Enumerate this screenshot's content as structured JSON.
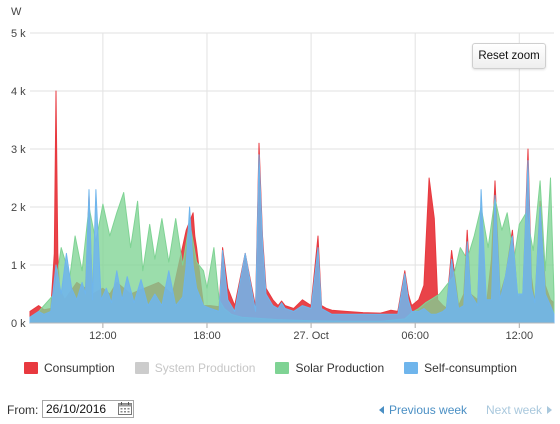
{
  "chart_data": {
    "type": "area",
    "ylabel": "W",
    "ylim": [
      0,
      5000
    ],
    "y_ticks": [
      "0 k",
      "1 k",
      "2 k",
      "3 k",
      "4 k",
      "5 k"
    ],
    "y_tick_values": [
      0,
      1000,
      2000,
      3000,
      4000,
      5000
    ],
    "x_range_hours": [
      7.8,
      38.0
    ],
    "x_ticks": [
      "12:00",
      "18:00",
      "27. Oct",
      "06:00",
      "12:00"
    ],
    "x_tick_values": [
      12,
      18,
      24,
      30,
      36
    ],
    "grid": true,
    "legend_position": "bottom",
    "series": [
      {
        "name": "Consumption",
        "color": "#e8393f",
        "visible": true,
        "x": [
          7.8,
          8.3,
          8.6,
          9.0,
          9.2,
          9.3,
          9.4,
          9.5,
          9.8,
          10.5,
          11.0,
          11.2,
          11.4,
          12.0,
          12.4,
          12.8,
          13.6,
          14.4,
          15.2,
          16.0,
          16.8,
          17.2,
          17.3,
          17.4,
          17.6,
          17.8,
          18.2,
          18.7,
          18.9,
          19.2,
          19.6,
          20.2,
          20.8,
          21.0,
          21.2,
          21.4,
          21.8,
          22.1,
          22.3,
          22.5,
          23.0,
          23.5,
          24.0,
          24.4,
          24.6,
          24.9,
          25.2,
          26.0,
          27.0,
          28.0,
          28.6,
          29.0,
          29.4,
          29.6,
          29.8,
          30.2,
          30.5,
          30.8,
          31.1,
          31.3,
          31.6,
          31.8,
          32.1,
          32.5,
          32.8,
          33.0,
          33.2,
          33.6,
          33.8,
          34.1,
          34.4,
          34.6,
          34.9,
          35.2,
          35.6,
          35.9,
          36.2,
          36.5,
          36.7,
          36.9,
          37.2,
          37.5,
          37.8,
          38.0
        ],
        "values": [
          200,
          300,
          230,
          250,
          1200,
          4000,
          1200,
          600,
          400,
          700,
          600,
          2200,
          500,
          600,
          500,
          700,
          500,
          600,
          700,
          500,
          1600,
          1900,
          1500,
          1300,
          800,
          300,
          300,
          280,
          1300,
          600,
          300,
          1200,
          280,
          3100,
          1500,
          600,
          400,
          300,
          380,
          300,
          250,
          400,
          300,
          1500,
          300,
          250,
          220,
          200,
          180,
          170,
          220,
          200,
          900,
          500,
          300,
          400,
          650,
          2500,
          1800,
          400,
          300,
          260,
          1250,
          300,
          500,
          1600,
          500,
          400,
          1900,
          300,
          1100,
          2450,
          500,
          800,
          1600,
          450,
          500,
          3000,
          800,
          350,
          2100,
          650,
          400,
          350
        ]
      },
      {
        "name": "System Production",
        "color": "#cccccc",
        "visible": false,
        "values": []
      },
      {
        "name": "Solar Production",
        "color": "#7fd394",
        "visible": true,
        "x": [
          7.8,
          8.3,
          8.6,
          9.2,
          9.6,
          10.1,
          10.4,
          10.8,
          11.2,
          11.6,
          12.0,
          12.4,
          12.8,
          13.2,
          13.6,
          14.0,
          14.3,
          14.7,
          15.0,
          15.4,
          15.8,
          16.2,
          16.6,
          17.0,
          17.4,
          17.8,
          18.0,
          18.4,
          18.7,
          19.0,
          19.4,
          20.0,
          21.0,
          22.0,
          23.0,
          24.0,
          26.0,
          28.0,
          29.4,
          29.8,
          30.2,
          30.6,
          31.0,
          31.4,
          31.8,
          32.2,
          32.6,
          33.0,
          33.4,
          33.8,
          34.2,
          34.6,
          35.0,
          35.3,
          35.7,
          36.0,
          36.4,
          36.8,
          37.2,
          37.5,
          37.8,
          38.0
        ],
        "values": [
          100,
          200,
          300,
          500,
          1300,
          800,
          1500,
          900,
          2000,
          1400,
          2050,
          1500,
          1900,
          2250,
          1300,
          2100,
          900,
          1700,
          1100,
          1800,
          1050,
          1800,
          1000,
          1750,
          1050,
          900,
          600,
          1300,
          400,
          250,
          150,
          100,
          80,
          60,
          50,
          40,
          30,
          30,
          70,
          180,
          250,
          350,
          420,
          500,
          650,
          800,
          1300,
          1100,
          1500,
          2000,
          1300,
          2150,
          1600,
          1900,
          1100,
          1700,
          1900,
          1250,
          2450,
          900,
          2500,
          500
        ]
      },
      {
        "name": "Self-consumption",
        "color": "#6fb5ec",
        "visible": true,
        "x": [
          7.8,
          8.3,
          8.6,
          9.0,
          9.3,
          9.6,
          9.9,
          10.2,
          10.5,
          10.8,
          11.0,
          11.2,
          11.4,
          11.6,
          11.9,
          12.2,
          12.5,
          12.8,
          13.1,
          13.4,
          13.8,
          14.2,
          14.6,
          15.0,
          15.4,
          15.8,
          16.2,
          16.6,
          16.8,
          17.0,
          17.2,
          17.4,
          17.8,
          18.2,
          18.7,
          18.9,
          19.2,
          19.6,
          20.2,
          20.8,
          21.0,
          21.2,
          21.4,
          21.8,
          22.1,
          22.3,
          22.5,
          23.0,
          23.5,
          24.0,
          24.4,
          24.6,
          24.9,
          25.2,
          26.0,
          27.0,
          28.0,
          28.6,
          29.0,
          29.4,
          29.6,
          29.8,
          30.2,
          30.5,
          30.7,
          30.9,
          31.2,
          31.6,
          31.8,
          32.1,
          32.5,
          32.8,
          33.0,
          33.2,
          33.6,
          33.8,
          34.1,
          34.4,
          34.6,
          34.9,
          35.2,
          35.6,
          35.9,
          36.2,
          36.5,
          36.7,
          36.9,
          37.2,
          37.5,
          37.8,
          38.0
        ],
        "values": [
          100,
          200,
          150,
          200,
          1000,
          500,
          1200,
          600,
          400,
          700,
          500,
          2300,
          400,
          2300,
          400,
          600,
          350,
          900,
          400,
          800,
          350,
          750,
          300,
          500,
          300,
          900,
          300,
          450,
          1000,
          2000,
          1000,
          600,
          300,
          250,
          200,
          1250,
          400,
          200,
          1200,
          200,
          2900,
          1400,
          500,
          300,
          250,
          350,
          250,
          200,
          300,
          250,
          1300,
          250,
          200,
          150,
          150,
          150,
          150,
          150,
          150,
          850,
          400,
          200,
          200,
          250,
          200,
          150,
          150,
          200,
          250,
          1100,
          250,
          300,
          1400,
          500,
          300,
          2300,
          400,
          400,
          2200,
          400,
          800,
          1500,
          500,
          500,
          2800,
          600,
          350,
          2000,
          500,
          300,
          150
        ]
      }
    ]
  },
  "reset_zoom_label": "Reset zoom",
  "legend": [
    {
      "label": "Consumption",
      "color": "#e8393f",
      "disabled": false
    },
    {
      "label": "System Production",
      "color": "#cccccc",
      "disabled": true
    },
    {
      "label": "Solar Production",
      "color": "#7fd394",
      "disabled": false
    },
    {
      "label": "Self-consumption",
      "color": "#6fb5ec",
      "disabled": false
    }
  ],
  "controls": {
    "from_label": "From:",
    "date_value": "26/10/2016",
    "prev_week_label": "Previous week",
    "next_week_label": "Next week"
  }
}
